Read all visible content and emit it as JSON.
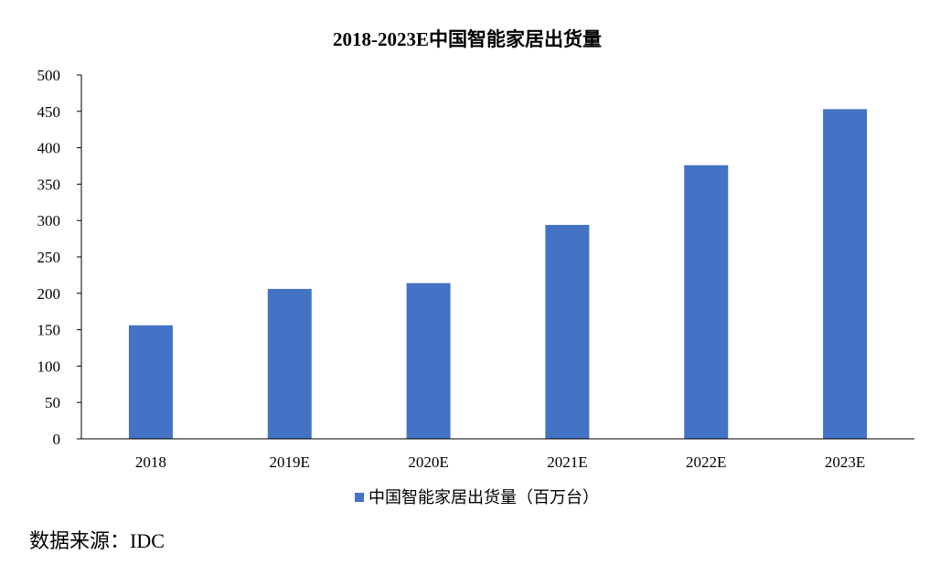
{
  "chart_data": {
    "type": "bar",
    "title": "2018-2023E中国智能家居出货量",
    "categories": [
      "2018",
      "2019E",
      "2020E",
      "2021E",
      "2022E",
      "2023E"
    ],
    "series": [
      {
        "name": "中国智能家居出货量（百万台）",
        "values": [
          156,
          206,
          214,
          294,
          376,
          453
        ],
        "color": "#4472C4"
      }
    ],
    "yticks": [
      "0",
      "50",
      "100",
      "150",
      "200",
      "250",
      "300",
      "350",
      "400",
      "450",
      "500"
    ],
    "ylim": [
      0,
      500
    ],
    "grid": false,
    "legend_position": "bottom"
  },
  "source": "数据来源：IDC"
}
